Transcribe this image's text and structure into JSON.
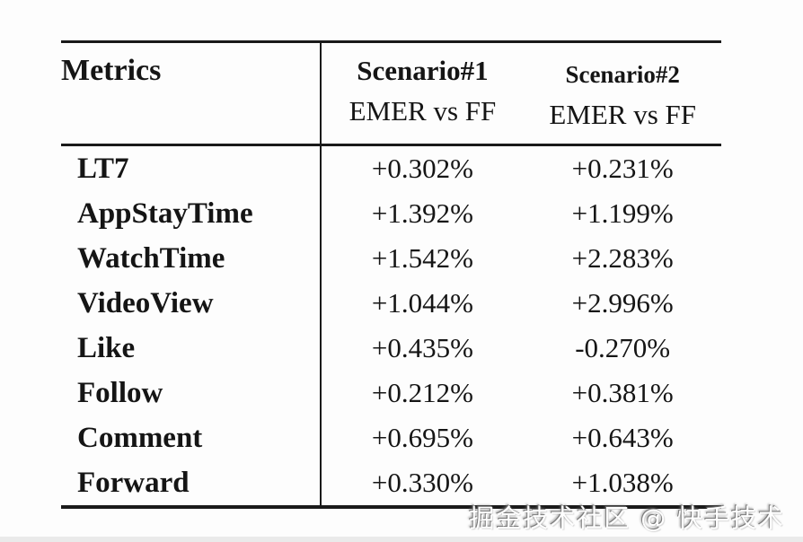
{
  "table": {
    "headers": {
      "col1": "Metrics",
      "col2_line1": "Scenario#1",
      "col2_line2": "EMER vs FF",
      "col3_line1": "Scenario#2",
      "col3_line2": "EMER vs FF"
    },
    "rows": [
      {
        "metric": "LT7",
        "s1": "+0.302%",
        "s2": "+0.231%"
      },
      {
        "metric": "AppStayTime",
        "s1": "+1.392%",
        "s2": "+1.199%"
      },
      {
        "metric": "WatchTime",
        "s1": "+1.542%",
        "s2": "+2.283%"
      },
      {
        "metric": "VideoView",
        "s1": "+1.044%",
        "s2": "+2.996%"
      },
      {
        "metric": "Like",
        "s1": "+0.435%",
        "s2": "-0.270%"
      },
      {
        "metric": "Follow",
        "s1": "+0.212%",
        "s2": "+0.381%"
      },
      {
        "metric": "Comment",
        "s1": "+0.695%",
        "s2": "+0.643%"
      },
      {
        "metric": "Forward",
        "s1": "+0.330%",
        "s2": "+1.038%"
      }
    ]
  },
  "watermark": {
    "text": "掘金技术社区 @ 快手技术"
  },
  "colors": {
    "rule": "#1a1a1a",
    "text": "#151515",
    "background": "#fdfdfd",
    "watermark_fill": "#ffffff",
    "watermark_shadow": "#6e6e6e"
  },
  "chart_data": {
    "type": "table",
    "columns": [
      "Metrics",
      "Scenario#1 EMER vs FF",
      "Scenario#2 EMER vs FF"
    ],
    "rows": [
      [
        "LT7",
        "+0.302%",
        "+0.231%"
      ],
      [
        "AppStayTime",
        "+1.392%",
        "+1.199%"
      ],
      [
        "WatchTime",
        "+1.542%",
        "+2.283%"
      ],
      [
        "VideoView",
        "+1.044%",
        "+2.996%"
      ],
      [
        "Like",
        "+0.435%",
        "-0.270%"
      ],
      [
        "Follow",
        "+0.212%",
        "+0.381%"
      ],
      [
        "Comment",
        "+0.695%",
        "+0.643%"
      ],
      [
        "Forward",
        "+0.330%",
        "+1.038%"
      ]
    ]
  }
}
